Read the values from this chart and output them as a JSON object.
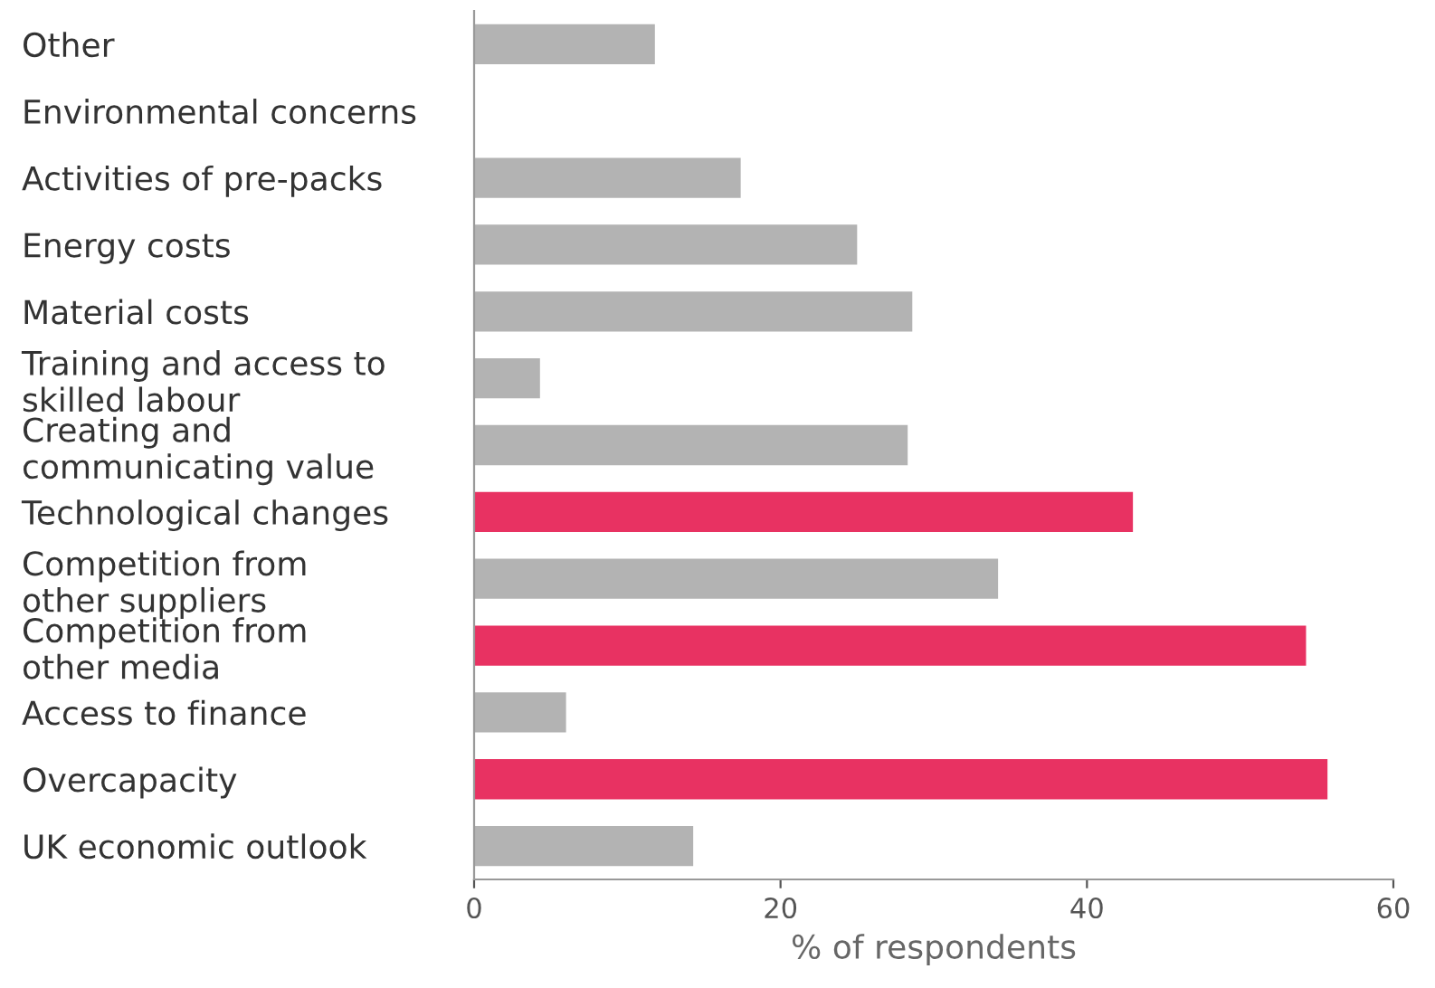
{
  "chart_data": {
    "type": "bar",
    "orientation": "horizontal",
    "xlabel": "% of respondents",
    "categories": [
      "Other",
      "Environmental concerns",
      "Activities of pre-packs",
      "Energy costs",
      "Material costs",
      "Training and access to\nskilled labour",
      "Creating and\ncommunicating value",
      "Technological changes",
      "Competition from\nother suppliers",
      "Competition from\nother media",
      "Access to finance",
      "Overcapacity",
      "UK economic outlook"
    ],
    "values": [
      11.8,
      0,
      17.4,
      25.0,
      28.6,
      4.3,
      28.3,
      43.0,
      34.2,
      54.3,
      6.0,
      55.7,
      14.3
    ],
    "colors": [
      "#b3b3b3",
      "#b3b3b3",
      "#b3b3b3",
      "#b3b3b3",
      "#b3b3b3",
      "#b3b3b3",
      "#b3b3b3",
      "#e83262",
      "#b3b3b3",
      "#e83262",
      "#b3b3b3",
      "#e83262",
      "#b3b3b3"
    ],
    "xlim": [
      0,
      60
    ],
    "xticks": [
      0,
      20,
      40,
      60
    ],
    "grid": false,
    "legend": false
  }
}
